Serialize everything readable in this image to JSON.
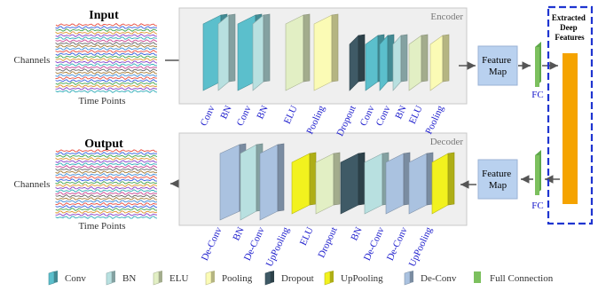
{
  "input_title": "Input",
  "output_title": "Output",
  "channels_label": "Channels",
  "time_points_label": "Time Points",
  "encoder_label": "Encoder",
  "decoder_label": "Decoder",
  "feature_map_label": "Feature Map",
  "fc_label": "FC",
  "extracted_title": "Extracted Deep Features",
  "encoder_layers": [
    "Conv",
    "BN",
    "Conv",
    "BN",
    "ELU",
    "Pooling",
    "Dropout",
    "Conv",
    "Conv",
    "BN",
    "ELU",
    "Pooling"
  ],
  "decoder_layers": [
    "De-Conv",
    "BN",
    "De-Conv",
    "UpPooling",
    "ELU",
    "Dropout",
    "BN",
    "De-Conv",
    "De-Conv",
    "UpPooling"
  ],
  "legend": [
    {
      "label": "Conv",
      "type": "conv"
    },
    {
      "label": "BN",
      "type": "bn"
    },
    {
      "label": "ELU",
      "type": "elu"
    },
    {
      "label": "Pooling",
      "type": "pool"
    },
    {
      "label": "Dropout",
      "type": "drop"
    },
    {
      "label": "UpPooling",
      "type": "uppool"
    },
    {
      "label": "De-Conv",
      "type": "deconv"
    },
    {
      "label": "Full Connection",
      "type": "fc"
    }
  ],
  "colors": {
    "conv": "#5bbfcc",
    "bn": "#b8e0e0",
    "elu": "#e2efc4",
    "pool": "#fbfbb5",
    "drop": "#3f5a66",
    "uppool": "#f2f21e",
    "deconv": "#aac2e0",
    "fc": "#7cc05e",
    "orange": "#f5a300",
    "blue_dash": "#1f35d0",
    "label_blue": "#1a1acc",
    "panel": "#efefef"
  }
}
